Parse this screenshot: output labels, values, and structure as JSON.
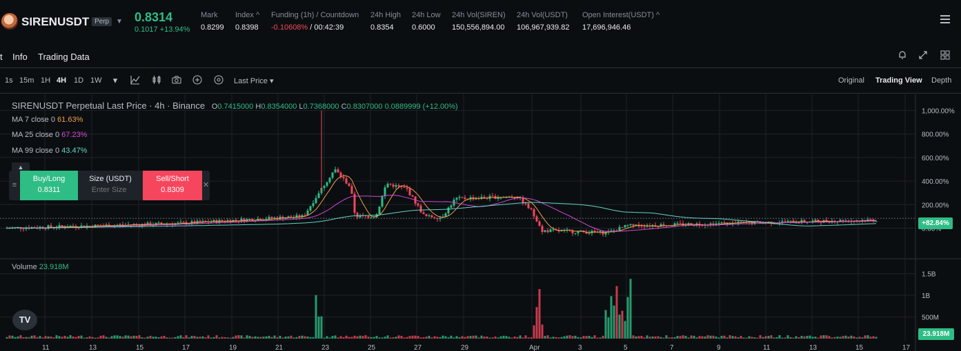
{
  "ticker": {
    "symbol": "SIRENUSDT",
    "badge": "Perp",
    "price": "0.8314",
    "change": "0.1017 +13.94%",
    "stats": [
      {
        "label": "Mark",
        "value": "0.8299"
      },
      {
        "label": "Index ^",
        "value": "0.8398"
      },
      {
        "label": "Funding (1h) / Countdown",
        "value_neg": "-0.10608%",
        "value": " / 00:42:39"
      },
      {
        "label": "24h High",
        "value": "0.8354"
      },
      {
        "label": "24h Low",
        "value": "0.6000"
      },
      {
        "label": "24h Vol(SIREN)",
        "value": "150,556,894.00"
      },
      {
        "label": "24h Vol(USDT)",
        "value": "106,967,939.82"
      },
      {
        "label": "Open Interest(USDT) ^",
        "value": "17,696,946.46"
      }
    ]
  },
  "tabs": {
    "cut": "t",
    "info": "Info",
    "trading_data": "Trading Data"
  },
  "toolbar": {
    "timeframes": [
      "1s",
      "15m",
      "1H",
      "4H",
      "1D",
      "1W"
    ],
    "active_timeframe": "4H",
    "price_type": "Last Price",
    "views": [
      "Original",
      "Trading View",
      "Depth"
    ],
    "active_view": "Trading View"
  },
  "chart": {
    "legend_title": "SIRENUSDT Perpetual Last Price · 4h · Binance",
    "open": "0.7415000",
    "high": "0.8354000",
    "low": "0.7368000",
    "close": "0.8307000",
    "change": "0.0889999 (+12.00%)",
    "ma7": {
      "label": "MA 7 close 0",
      "value": "61.63%",
      "color": "#f0a24a"
    },
    "ma25": {
      "label": "MA 25 close 0",
      "value": "67.23%",
      "color": "#d34ad3"
    },
    "ma99": {
      "label": "MA 99 close 0",
      "value": "43.47%",
      "color": "#62d6c6"
    },
    "last_label": "+82.84%",
    "volume_label": "Volume",
    "volume_value": "23.918M",
    "up_color": "#2ebd85",
    "down_color": "#f6465d"
  },
  "trade": {
    "buy": "Buy/Long",
    "buy_price": "0.8311",
    "size_label": "Size (USDT)",
    "size_placeholder": "Enter Size",
    "sell": "Sell/Short",
    "sell_price": "0.8309"
  },
  "chart_data": {
    "type": "candlestick",
    "price_axis": [
      "1,000.00%",
      "800.00%",
      "600.00%",
      "400.00%",
      "200.00%",
      "0.00%"
    ],
    "price_axis_values": [
      1000,
      800,
      600,
      400,
      200,
      0
    ],
    "volume_axis": [
      "1.5B",
      "1B",
      "500M"
    ],
    "volume_axis_values": [
      1500,
      1000,
      500
    ],
    "x_ticks": [
      "11",
      "13",
      "15",
      "17",
      "19",
      "21",
      "23",
      "25",
      "27",
      "29",
      "Apr",
      "3",
      "5",
      "7",
      "9",
      "11",
      "13",
      "15",
      "17"
    ],
    "ylim": [
      -50,
      1050
    ],
    "grid": true
  }
}
